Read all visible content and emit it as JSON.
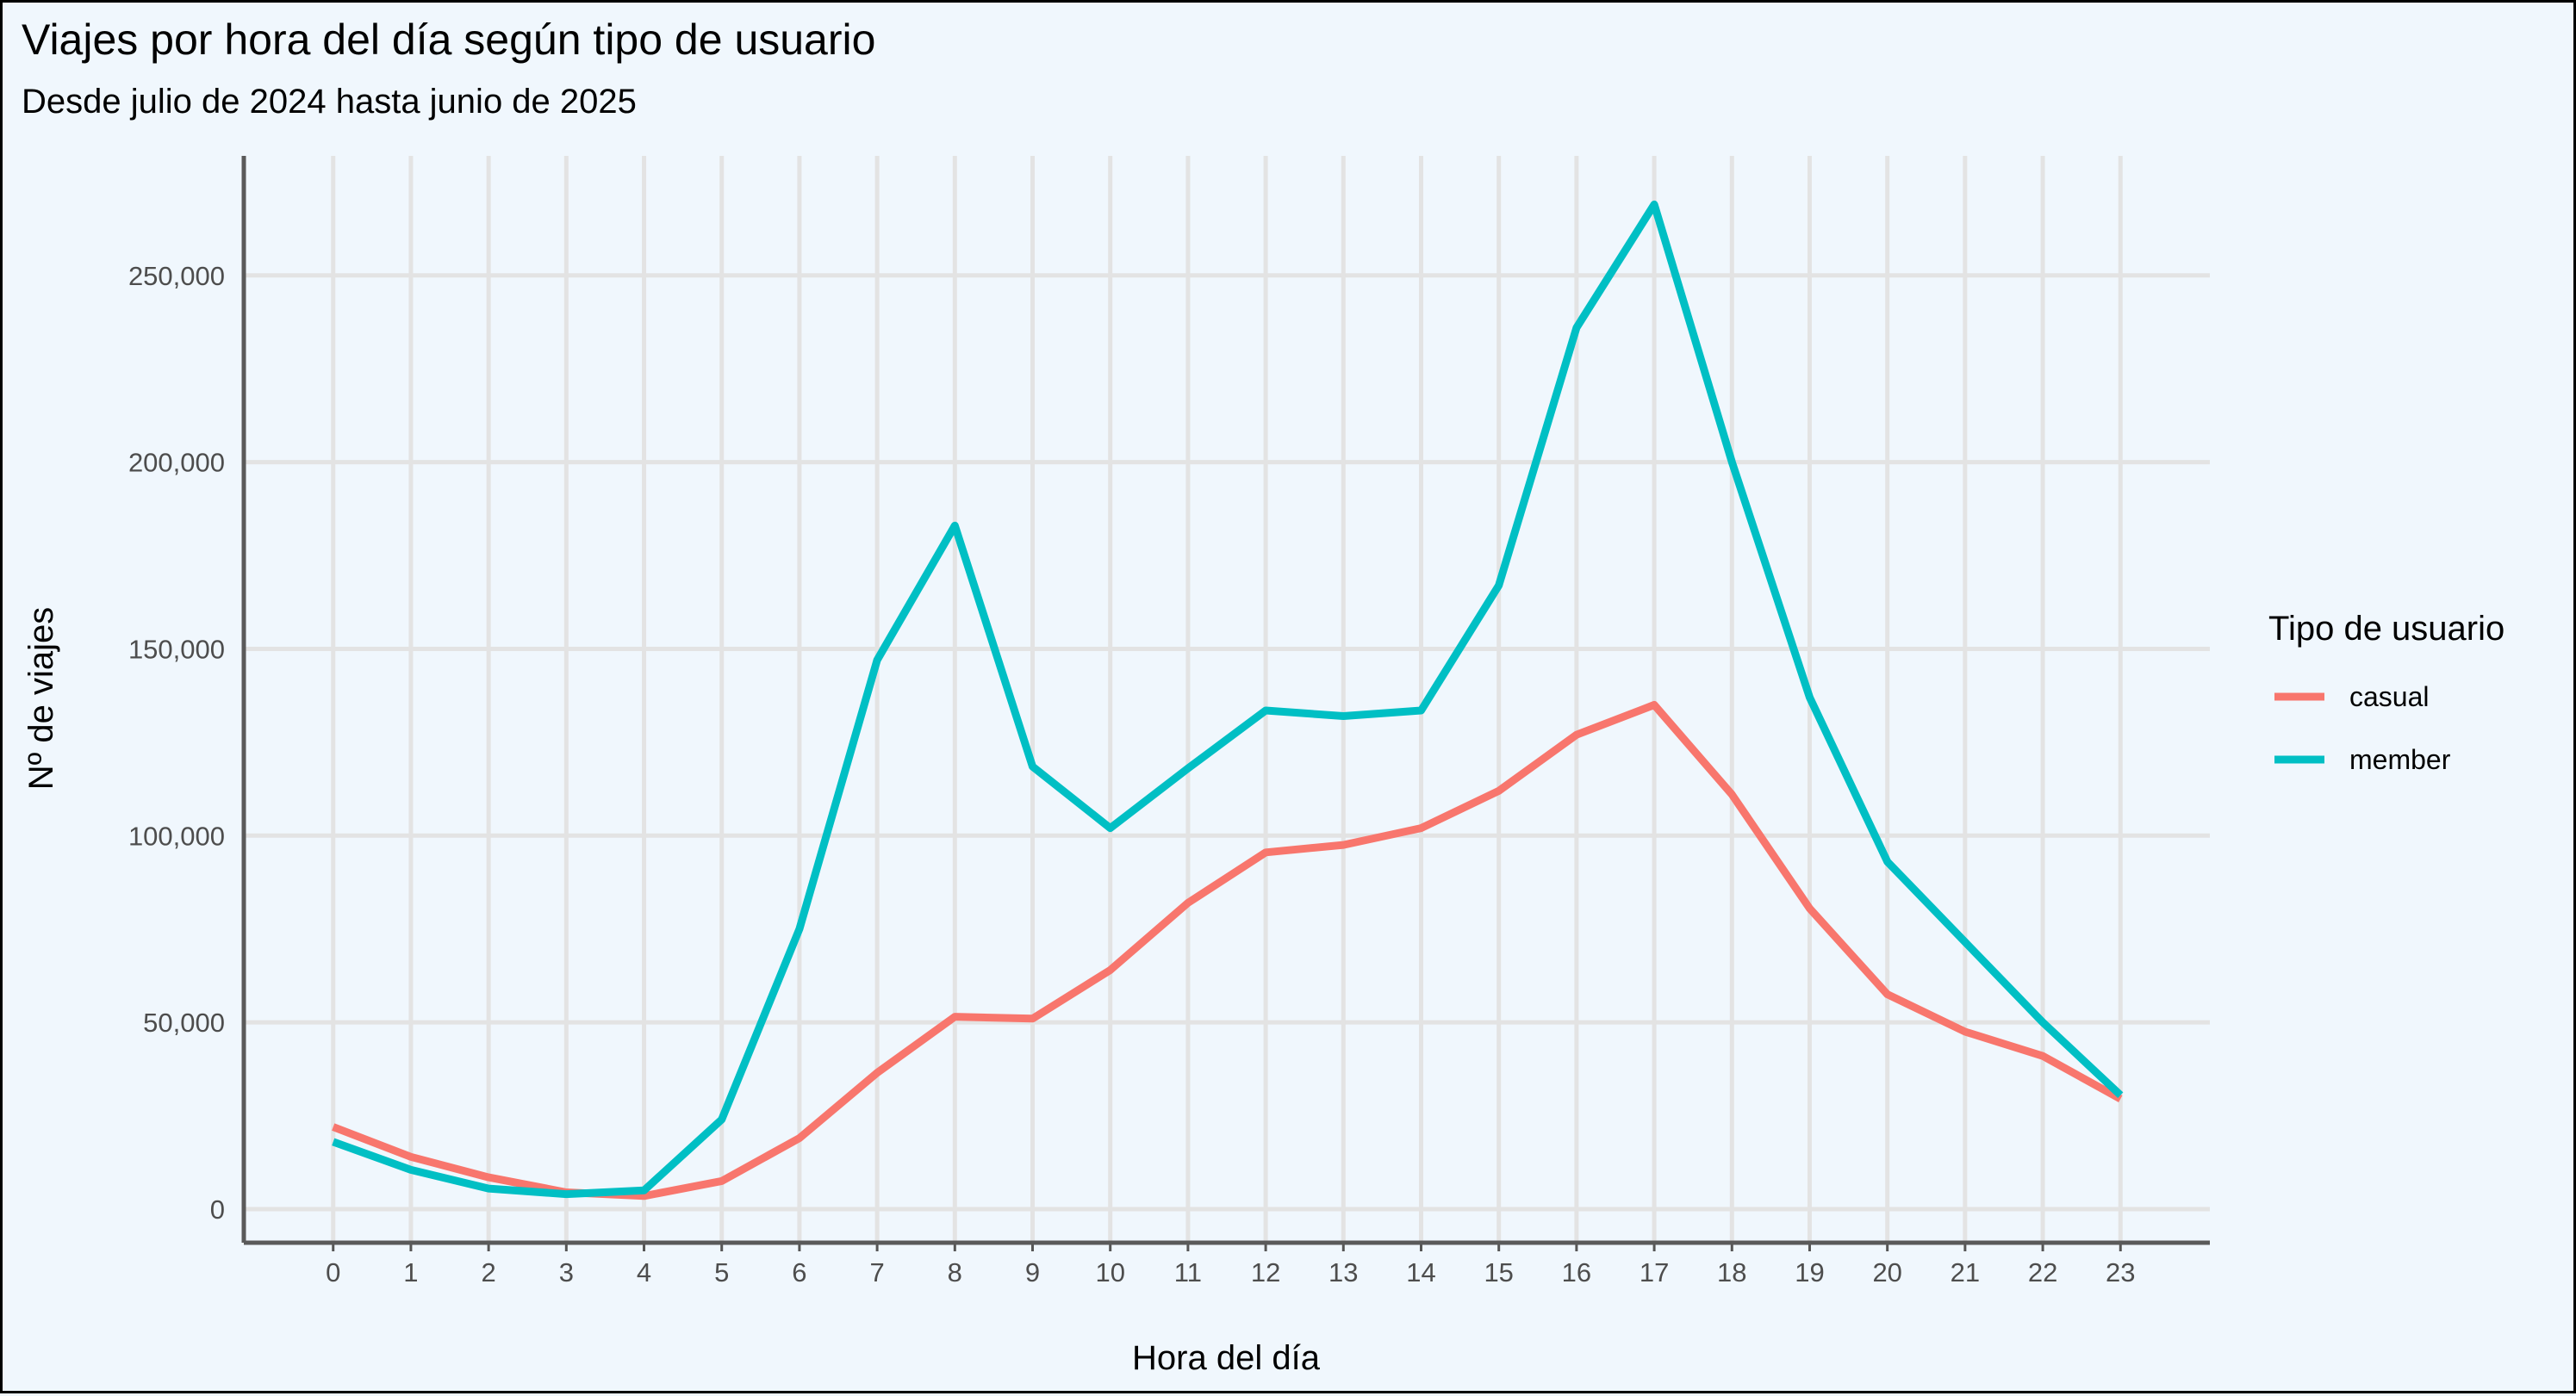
{
  "chart_data": {
    "type": "line",
    "title": "Viajes por hora del día según tipo de usuario",
    "subtitle": "Desde julio de 2024 hasta junio de 2025",
    "xlabel": "Hora del día",
    "ylabel": "Nº de viajes",
    "x": [
      0,
      1,
      2,
      3,
      4,
      5,
      6,
      7,
      8,
      9,
      10,
      11,
      12,
      13,
      14,
      15,
      16,
      17,
      18,
      19,
      20,
      21,
      22,
      23
    ],
    "xlim": [
      -1.15,
      24.15
    ],
    "ylim": [
      -9000,
      282000
    ],
    "yticks": [
      0,
      50000,
      100000,
      150000,
      200000,
      250000
    ],
    "ytick_labels": [
      "0",
      "50,000",
      "100,000",
      "150,000",
      "200,000",
      "250,000"
    ],
    "grid": true,
    "legend": {
      "title": "Tipo de usuario",
      "position": "right"
    },
    "series": [
      {
        "name": "casual",
        "color": "#F8766D",
        "values": [
          22000,
          14000,
          8500,
          4500,
          3500,
          7500,
          19000,
          36500,
          51500,
          51000,
          64000,
          82000,
          95500,
          97500,
          102000,
          112000,
          127000,
          135000,
          111000,
          80500,
          57500,
          47500,
          41000,
          29500
        ]
      },
      {
        "name": "member",
        "color": "#00BFC4",
        "values": [
          18000,
          10500,
          5500,
          4000,
          5000,
          24000,
          75000,
          147000,
          183000,
          118500,
          102000,
          118000,
          133500,
          132000,
          133500,
          167000,
          236000,
          269000,
          200000,
          137000,
          93000,
          71500,
          50000,
          30500
        ]
      }
    ]
  }
}
